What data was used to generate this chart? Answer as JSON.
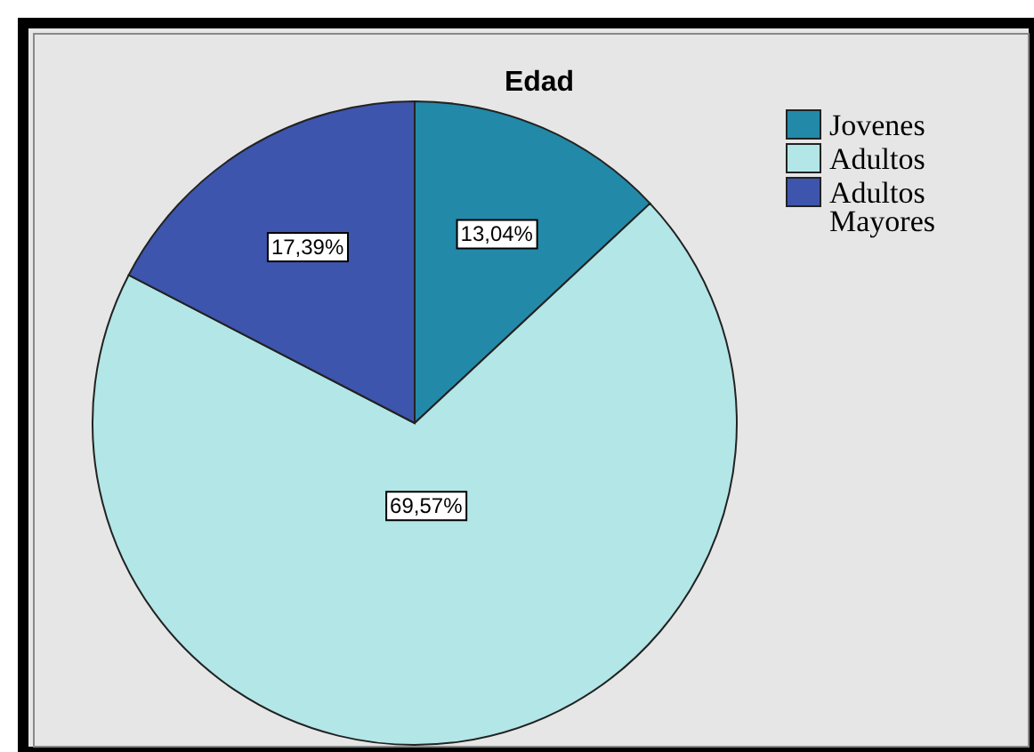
{
  "chart_data": {
    "type": "pie",
    "title": "Edad",
    "categories": [
      "Jovenes",
      "Adultos",
      "Adultos Mayores"
    ],
    "values": [
      13.04,
      69.57,
      17.39
    ],
    "value_labels": [
      "13,04%",
      "69,57%",
      "17,39%"
    ],
    "colors": [
      "#2389a8",
      "#b3e6e6",
      "#3d55ad"
    ],
    "legend": "top right"
  }
}
